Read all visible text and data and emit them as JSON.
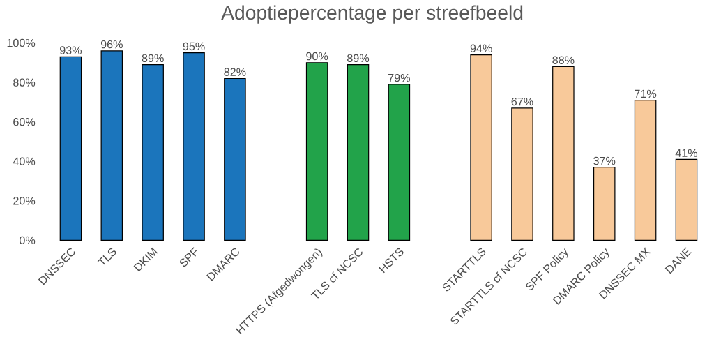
{
  "chart_data": {
    "type": "bar",
    "title": "Adoptiepercentage per streefbeeld",
    "categories": [
      "DNSSEC",
      "TLS",
      "DKIM",
      "SPF",
      "DMARC",
      null,
      "HTTPS (Afgedwongen)",
      "TLS cf NCSC",
      "HSTS",
      null,
      "STARTTLS",
      "STARTTLS cf NCSC",
      "SPF Policy",
      "DMARC Policy",
      "DNSSEC MX",
      "DANE"
    ],
    "values": [
      93,
      96,
      89,
      95,
      82,
      null,
      90,
      89,
      79,
      null,
      94,
      67,
      88,
      37,
      71,
      41
    ],
    "value_labels": [
      "93%",
      "96%",
      "89%",
      "95%",
      "82%",
      null,
      "90%",
      "89%",
      "79%",
      null,
      "94%",
      "67%",
      "88%",
      "37%",
      "71%",
      "41%"
    ],
    "colors": [
      "#1b75bc",
      "#1b75bc",
      "#1b75bc",
      "#1b75bc",
      "#1b75bc",
      null,
      "#22a34a",
      "#22a34a",
      "#22a34a",
      null,
      "#f8c99a",
      "#f8c99a",
      "#f8c99a",
      "#f8c99a",
      "#f8c99a",
      "#f8c99a"
    ],
    "ylim": [
      0,
      100
    ],
    "yticks": [
      {
        "value": 0,
        "label": "0%"
      },
      {
        "value": 20,
        "label": "20%"
      },
      {
        "value": 40,
        "label": "40%"
      },
      {
        "value": 60,
        "label": "60%"
      },
      {
        "value": 80,
        "label": "80%"
      },
      {
        "value": 100,
        "label": "100%"
      }
    ],
    "grid": false
  }
}
